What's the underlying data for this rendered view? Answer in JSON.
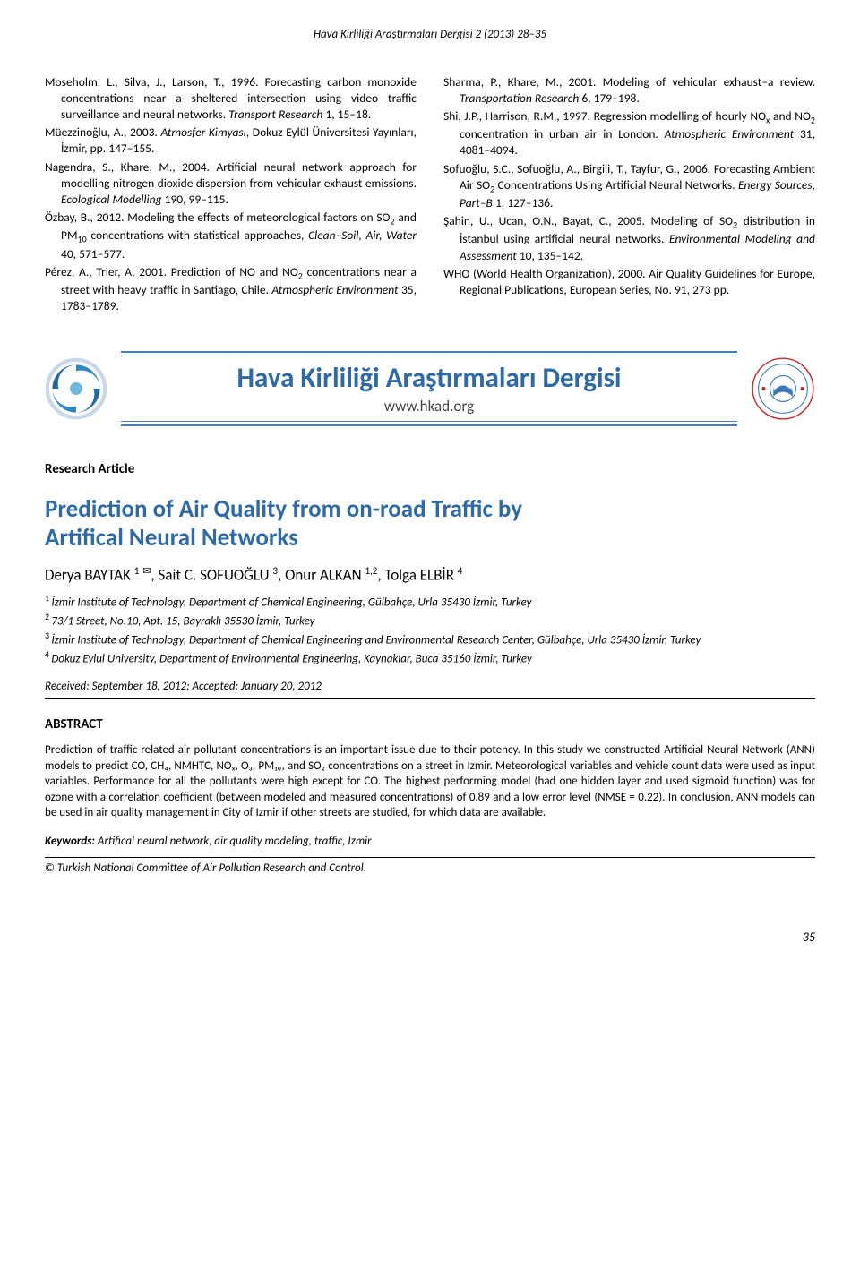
{
  "header": "Hava Kirliliği Araştırmaları Dergisi 2 (2013) 28–35",
  "refs_left": [
    "Moseholm, L., Silva, J., Larson, T., 1996. Forecasting carbon monoxide concentrations near a sheltered intersection using video traffic surveillance and neural networks. <i>Transport Research</i> 1, 15–18.",
    "Müezzinoğlu, A., 2003. <i>Atmosfer Kimyası</i>, Dokuz Eylül Üniversitesi Yayınları, İzmir, pp. 147–155.",
    "Nagendra, S., Khare, M., 2004. Artificial neural network approach for modelling nitrogen dioxide dispersion from vehicular exhaust emissions. <i>Ecological Modelling</i> 190, 99–115.",
    "Özbay, B., 2012. Modeling the effects of meteorological factors on SO<span class=\"sub\">2</span> and PM<span class=\"sub\">10</span> concentrations with statistical approaches, <i>Clean–Soil, Air, Water</i> 40, 571–577.",
    "Pérez, A., Trier, A, 2001. Prediction of NO and NO<span class=\"sub\">2</span> concentrations near a street with heavy traffic in Santiago, Chile. <i>Atmospheric Environment</i> 35, 1783–1789."
  ],
  "refs_right": [
    "Sharma, P., Khare, M., 2001. Modeling of vehicular exhaust–a review. <i>Transportation Research</i> 6, 179–198.",
    "Shi, J.P., Harrison, R.M., 1997. Regression modelling of hourly NO<span class=\"sub\">x</span> and NO<span class=\"sub\">2</span> concentration in urban air in London. <i>Atmospheric Environment</i> 31, 4081–4094.",
    "Sofuoğlu, S.C., Sofuoğlu, A., Birgili, T., Tayfur, G., 2006. Forecasting Ambient Air SO<span class=\"sub\">2</span> Concentrations Using Artificial Neural Networks. <i>Energy Sources, Part–B</i> 1, 127–136.",
    "Şahin, U., Ucan, O.N., Bayat, C., 2005. Modeling of SO<span class=\"sub\">2</span> distribution in İstanbul using artificial neural networks. <i>Environmental Modeling and Assessment</i> 10, 135–142.",
    "WHO (World Health Organization), 2000. Air Quality Guidelines for Europe, Regional Publications, European Series, No. 91, 273 pp."
  ],
  "journal": {
    "name": "Hava Kirliliği Araştırmaları Dergisi",
    "url": "www.hkad.org",
    "seal_outer": "HKADTMK",
    "accent_color": "#2e6aa6",
    "line_color": "#4a7fb0"
  },
  "article": {
    "section": "Research Article",
    "title_l1": "Prediction of Air Quality from on-road Traffic by",
    "title_l2": "Artifical Neural Networks",
    "authors_html": "Derya BAYTAK <span class=\"sup\">1</span> <span class=\"mail-icon\">✉</span>, Sait C. SOFUOĞLU <span class=\"sup\">3</span>, Onur ALKAN <span class=\"sup\">1,2</span>, Tolga ELBİR <span class=\"sup\">4</span>",
    "aff1": "İzmir Institute of Technology, Department of Chemical Engineering, Gülbahçe, Urla 35430 İzmir, Turkey",
    "aff2": "73/1 Street, No.10, Apt. 15, Bayraklı 35530 İzmir, Turkey",
    "aff3": "İzmir Institute of Technology, Department of Chemical Engineering and Environmental Research Center, Gülbahçe, Urla 35430 İzmir, Turkey",
    "aff4": "Dokuz Eylul University, Department of Environmental Engineering, Kaynaklar, Buca 35160 İzmir, Turkey",
    "dates": "Received: September 18,  2012; Accepted: January 20, 2012",
    "abstract_head": "ABSTRACT",
    "abstract_body": "Prediction of traffic related air pollutant concentrations is an important issue due to their potency. In this study we constructed Artificial Neural Network (ANN) models to predict CO, CH₄, NMHTC, NOₓ, O₃, PM₁₀, and SO₂ concentrations on a street in Izmir. Meteorological variables and vehicle count data were used as input variables. Performance for all the pollutants were high except for CO. The highest performing model (had one hidden layer and used sigmoid function) was for ozone with a correlation coefficient (between modeled and measured concentrations) of 0.89 and a low error level (NMSE = 0.22). In conclusion, ANN models can be used in air quality management in City of Izmir if other streets are studied, for which data are available.",
    "keywords_label": "Keywords:",
    "keywords_text": " Artifical neural network, air quality modeling, traffic, Izmir",
    "copyright": "© Turkish National Committee of Air Pollution Research and Control."
  },
  "page_number": "35"
}
